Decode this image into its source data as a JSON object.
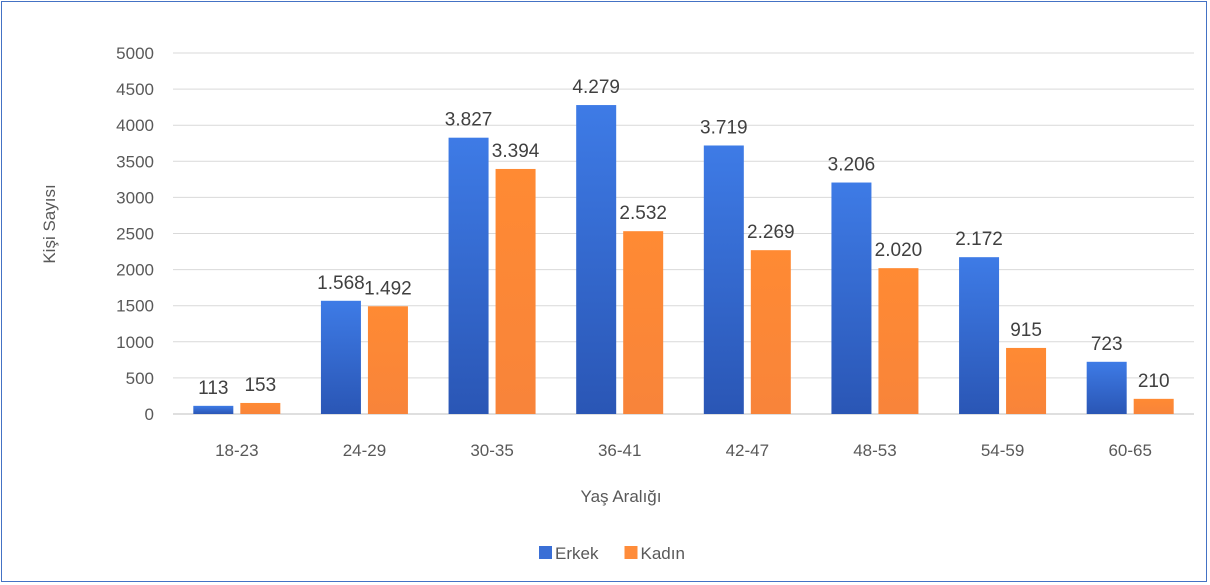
{
  "chart_data": {
    "type": "bar",
    "title": "",
    "xlabel": "Yaş Aralığı",
    "ylabel": "Kişi Sayısı",
    "categories": [
      "18-23",
      "24-29",
      "30-35",
      "36-41",
      "42-47",
      "48-53",
      "54-59",
      "60-65"
    ],
    "series": [
      {
        "name": "Erkek",
        "color": "#3A6FD6",
        "values": [
          113,
          1568,
          3827,
          4279,
          3719,
          3206,
          2172,
          723
        ],
        "labels": [
          "113",
          "1.568",
          "3.827",
          "4.279",
          "3.719",
          "3.206",
          "2.172",
          "723"
        ]
      },
      {
        "name": "Kadın",
        "color": "#FF8C3A",
        "values": [
          153,
          1492,
          3394,
          2532,
          2269,
          2020,
          915,
          210
        ],
        "labels": [
          "153",
          "1.492",
          "3.394",
          "2.532",
          "2.269",
          "2.020",
          "915",
          "210"
        ]
      }
    ],
    "ylim": [
      0,
      5000
    ],
    "yticks": [
      0,
      500,
      1000,
      1500,
      2000,
      2500,
      3000,
      3500,
      4000,
      4500,
      5000
    ],
    "grid": true,
    "legend": "bottom-center"
  }
}
